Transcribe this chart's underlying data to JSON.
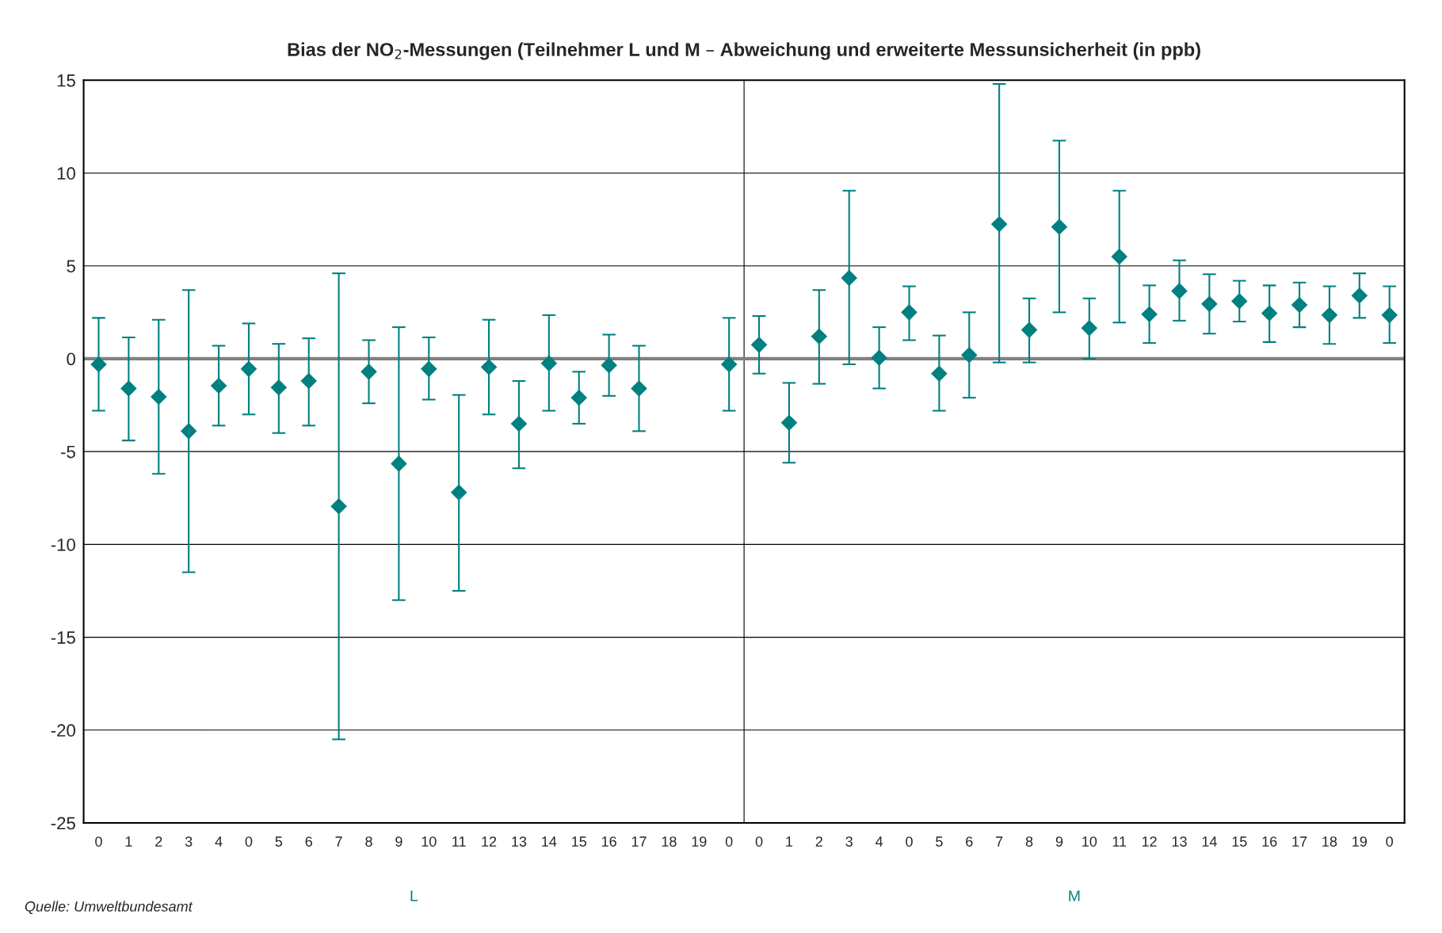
{
  "chart_data": {
    "type": "scatter",
    "title": "Bias der NO$_{2}$-Messungen (Teilnehmer L und M – Abweichung und erweiterte Messunsicherheit (in ppb)",
    "categories": [
      "0",
      "1",
      "2",
      "3",
      "4",
      "0",
      "5",
      "6",
      "7",
      "8",
      "9",
      "10",
      "11",
      "12",
      "13",
      "14",
      "15",
      "16",
      "17",
      "18",
      "19",
      "0",
      "0",
      "1",
      "2",
      "3",
      "4",
      "0",
      "5",
      "6",
      "7",
      "8",
      "9",
      "10",
      "11",
      "12",
      "13",
      "14",
      "15",
      "16",
      "17",
      "18",
      "19",
      "0"
    ],
    "series": [
      {
        "color": "#008080",
        "values": [
          -0.3,
          -1.6,
          -2.05,
          -3.9,
          -1.45,
          -0.55,
          -1.55,
          -1.2,
          -7.95,
          -0.7,
          -5.65,
          -0.55,
          -7.2,
          -0.45,
          -3.5,
          -0.25,
          -2.1,
          -0.35,
          -1.6,
          null,
          null,
          -0.3,
          0.75,
          -3.45,
          1.2,
          4.35,
          0.05,
          2.5,
          -0.8,
          0.2,
          7.25,
          1.55,
          7.1,
          1.65,
          5.5,
          2.4,
          3.65,
          2.95,
          3.1,
          2.45,
          2.9,
          2.35,
          3.4,
          2.35
        ],
        "errors": [
          [
            -2.8,
            2.2
          ],
          [
            -4.4,
            1.15
          ],
          [
            -6.2,
            2.1
          ],
          [
            -11.5,
            3.7
          ],
          [
            -3.6,
            0.7
          ],
          [
            -3.0,
            1.9
          ],
          [
            -4.0,
            0.8
          ],
          [
            -3.6,
            1.1
          ],
          [
            -20.5,
            4.6
          ],
          [
            -2.4,
            1.0
          ],
          [
            -13.0,
            1.7
          ],
          [
            -2.2,
            1.15
          ],
          [
            -12.5,
            -1.95
          ],
          [
            -3.0,
            2.1
          ],
          [
            -5.9,
            -1.2
          ],
          [
            -2.8,
            2.35
          ],
          [
            -3.5,
            -0.7
          ],
          [
            -2.0,
            1.3
          ],
          [
            -3.9,
            0.7
          ],
          null,
          null,
          [
            -2.8,
            2.2
          ],
          [
            -0.8,
            2.3
          ],
          [
            -5.6,
            -1.3
          ],
          [
            -1.35,
            3.7
          ],
          [
            -0.3,
            9.05
          ],
          [
            -1.6,
            1.7
          ],
          [
            1.0,
            3.9
          ],
          [
            -2.8,
            1.25
          ],
          [
            -2.1,
            2.5
          ],
          [
            -0.2,
            14.8
          ],
          [
            -0.2,
            3.25
          ],
          [
            2.5,
            11.75
          ],
          [
            0.0,
            3.25
          ],
          [
            1.95,
            9.05
          ],
          [
            0.85,
            3.95
          ],
          [
            2.05,
            5.3
          ],
          [
            1.35,
            4.55
          ],
          [
            2.0,
            4.2
          ],
          [
            0.9,
            3.95
          ],
          [
            1.7,
            4.1
          ],
          [
            0.8,
            3.9
          ],
          [
            2.2,
            4.6
          ],
          [
            0.85,
            3.9
          ]
        ]
      }
    ],
    "ylim": [
      -25,
      15
    ],
    "yticks": [
      -25,
      -20,
      -15,
      -10,
      -5,
      0,
      5,
      10,
      15
    ],
    "grid": "y",
    "marker": "diamond",
    "ref_lines": [
      {
        "axis": "y",
        "value": 0,
        "color": "#808080"
      }
    ],
    "annotations": [
      "L",
      "M",
      "Quelle: Umweltbundesamt"
    ]
  }
}
